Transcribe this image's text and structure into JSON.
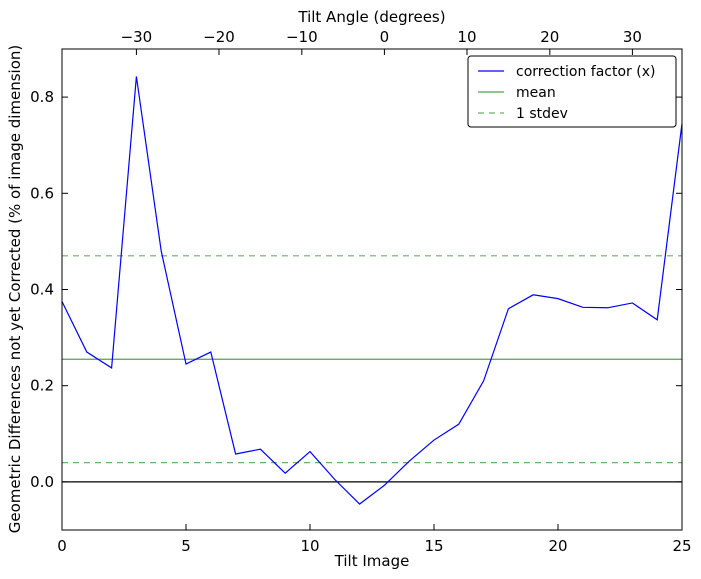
{
  "chart_data": {
    "type": "line",
    "xlabel": "Tilt Image",
    "ylabel": "Geometric Differences not yet Corrected (% of image dimension)",
    "top_xlabel": "Tilt Angle (degrees)",
    "xlim": [
      0,
      25
    ],
    "ylim": [
      -0.1,
      0.9
    ],
    "x_ticks": [
      0,
      5,
      10,
      15,
      20,
      25
    ],
    "y_ticks": [
      0.0,
      0.2,
      0.4,
      0.6,
      0.8
    ],
    "top_ticks": [
      {
        "label": "−30",
        "image": 3
      },
      {
        "label": "−20",
        "image": 6.33
      },
      {
        "label": "−10",
        "image": 9.67
      },
      {
        "label": "0",
        "image": 13
      },
      {
        "label": "10",
        "image": 16.33
      },
      {
        "label": "20",
        "image": 19.67
      },
      {
        "label": "30",
        "image": 23
      }
    ],
    "grid": false,
    "legend_position": "top-right",
    "series": [
      {
        "name": "correction factor (x)",
        "color": "#0000ff",
        "style": "solid",
        "x": [
          0,
          1,
          2,
          3,
          4,
          5,
          6,
          7,
          8,
          9,
          10,
          11,
          12,
          13,
          14,
          15,
          16,
          17,
          18,
          19,
          20,
          21,
          22,
          23,
          24,
          25
        ],
        "y": [
          0.375,
          0.27,
          0.237,
          0.843,
          0.48,
          0.245,
          0.27,
          0.058,
          0.068,
          0.018,
          0.063,
          0.005,
          -0.046,
          -0.007,
          0.043,
          0.087,
          0.12,
          0.21,
          0.36,
          0.389,
          0.381,
          0.363,
          0.362,
          0.372,
          0.337,
          0.745
        ]
      },
      {
        "name": "mean",
        "color": "#008000",
        "style": "solid",
        "value": 0.255
      },
      {
        "name": "1 stdev",
        "color": "#008000",
        "style": "dashed",
        "values": [
          0.47,
          0.04
        ]
      }
    ],
    "zero_line": 0.0
  }
}
